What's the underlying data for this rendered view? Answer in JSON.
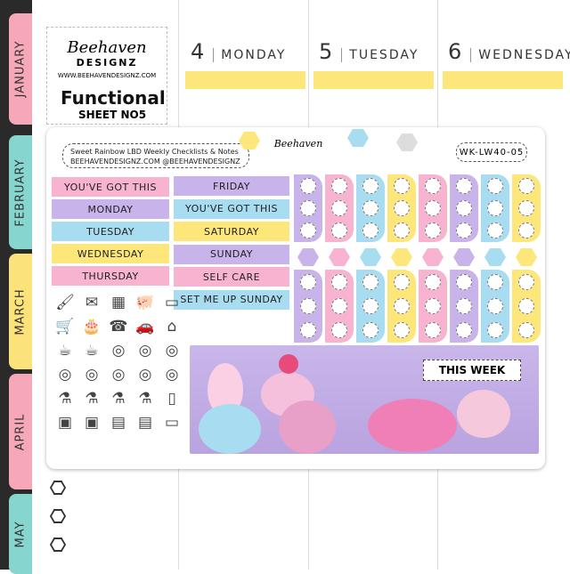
{
  "months": [
    "JANUARY",
    "FEBRUARY",
    "MARCH",
    "APRIL",
    "MAY"
  ],
  "columns": [
    {
      "num": "4",
      "day": "MONDAY"
    },
    {
      "num": "5",
      "day": "TUESDAY"
    },
    {
      "num": "6",
      "day": "WEDNESDAY"
    }
  ],
  "brand": {
    "name": "Beehaven",
    "sub": "DESIGNZ",
    "url": "WWW.BEEHAVENDESIGNZ.COM",
    "title": "Functional",
    "sheet": "SHEET NO5"
  },
  "sheet": {
    "header": "Sweet Rainbow LBD Weekly Checklists & Notes",
    "contact": "BEEHAVENDESIGNZ.COM  @BEEHAVENDESIGNZ",
    "code": "WK-LW40-05",
    "banner": "THIS WEEK",
    "labels_left": [
      "YOU'VE GOT THIS",
      "MONDAY",
      "TUESDAY",
      "WEDNESDAY",
      "THURSDAY"
    ],
    "labels_right": [
      "FRIDAY",
      "YOU'VE GOT THIS",
      "SATURDAY",
      "SUNDAY",
      "SELF CARE",
      "SET ME UP SUNDAY"
    ]
  },
  "colors": {
    "pink": "#f7b3d0",
    "purple": "#c8b3ea",
    "blue": "#a8dcf0",
    "yellow": "#fde77a",
    "tab_pink": "#f7a8b8",
    "tab_teal": "#86d6cf",
    "tab_yellow": "#fbe27a"
  }
}
